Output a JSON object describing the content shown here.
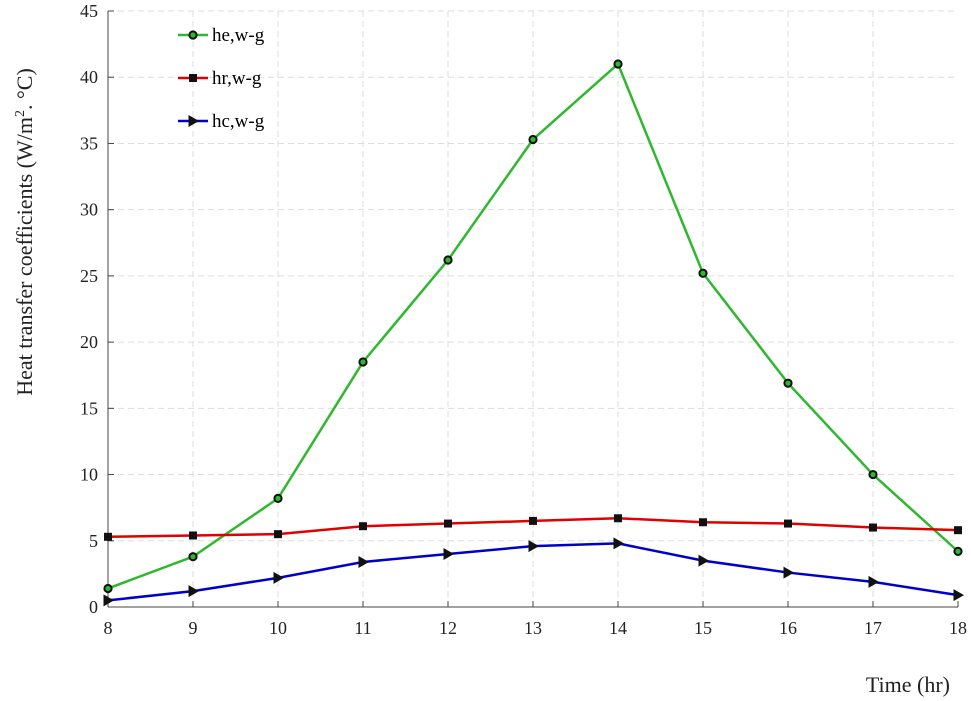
{
  "chart_data": {
    "type": "line",
    "xlabel": "Time (hr)",
    "ylabel": "Heat transfer coefficients (W/m",
    "ylabel_sup": "2",
    "ylabel_tail": ". °C)",
    "x": [
      8,
      9,
      10,
      11,
      12,
      13,
      14,
      15,
      16,
      17,
      18
    ],
    "xlim": [
      8,
      18
    ],
    "ylim": [
      0,
      45
    ],
    "xticks": [
      8,
      9,
      10,
      11,
      12,
      13,
      14,
      15,
      16,
      17,
      18
    ],
    "yticks": [
      0,
      5,
      10,
      15,
      20,
      25,
      30,
      35,
      40,
      45
    ],
    "grid": true,
    "legend_position": "top-left",
    "series": [
      {
        "name": "he,w-g",
        "color": "#2eb82e",
        "marker": "circle",
        "values": [
          1.4,
          3.8,
          8.2,
          18.5,
          26.2,
          35.3,
          41.0,
          25.2,
          16.9,
          10.0,
          4.2
        ]
      },
      {
        "name": "hr,w-g",
        "color": "#e00000",
        "marker": "square",
        "values": [
          5.3,
          5.4,
          5.5,
          6.1,
          6.3,
          6.5,
          6.7,
          6.4,
          6.3,
          6.0,
          5.8
        ]
      },
      {
        "name": "hc,w-g",
        "color": "#0000cc",
        "marker": "triangle-right",
        "values": [
          0.5,
          1.2,
          2.2,
          3.4,
          4.0,
          4.6,
          4.8,
          3.5,
          2.6,
          1.9,
          0.9
        ]
      }
    ]
  }
}
